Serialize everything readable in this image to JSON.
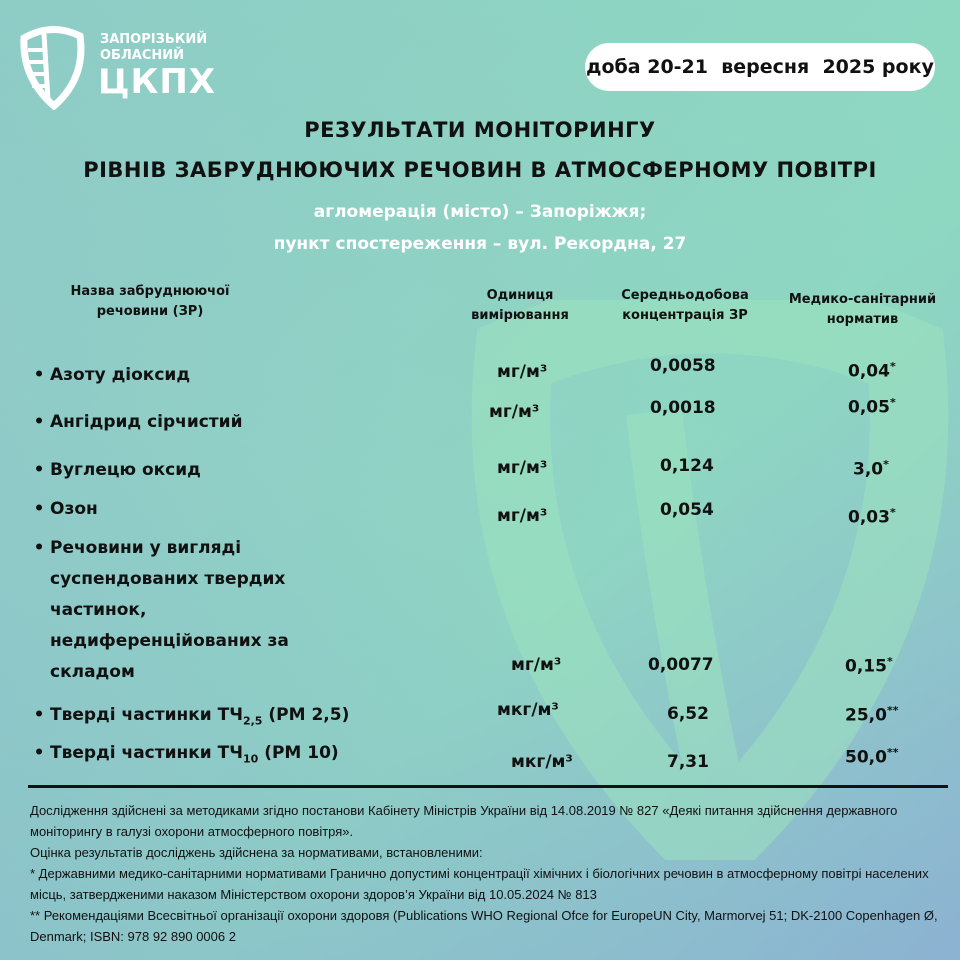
{
  "org": {
    "line1": "ЗАПОРІЗЬКИЙ",
    "line2": "ОБЛАСНИЙ",
    "abbr": "ЦКПХ"
  },
  "date": "доба 20-21  вересня  2025 року",
  "title": {
    "line1": "РЕЗУЛЬТАТИ МОНІТОРИНГУ",
    "line2": "РІВНІВ ЗАБРУДНЮЮЧИХ РЕЧОВИН В АТМОСФЕРНОМУ ПОВІТРІ"
  },
  "subtitle": {
    "line1": "агломерація (місто) – Запоріжжя;",
    "line2": "пункт спостереження – вул. Рекордна, 27"
  },
  "headers": {
    "name1": "Назва забруднюючої",
    "name2": "речовини (ЗР)",
    "unit1": "Одиниця",
    "unit2": "вимірювання",
    "conc1": "Середньодобова",
    "conc2": "концентрація ЗР",
    "norm1": "Медико-санітарний",
    "norm2": "норматив"
  },
  "bullet": "•",
  "rows": [
    {
      "name": "Азоту діоксид",
      "unit": "мг/м³",
      "conc": "0,0058",
      "norm": "0,04",
      "mark": "*"
    },
    {
      "name": "Ангідрид сірчистий",
      "unit": "мг/м³",
      "conc": "0,0018",
      "norm": "0,05",
      "mark": "*"
    },
    {
      "name": "Вуглецю оксид",
      "unit": "мг/м³",
      "conc": "0,124",
      "norm": "3,0",
      "mark": "*"
    },
    {
      "name": "Озон",
      "unit": "мг/м³",
      "conc": "0,054",
      "norm": "0,03",
      "mark": "*"
    },
    {
      "name_lines": [
        "Речовини у вигляді",
        "суспендованих твердих",
        "частинок,",
        "недиференційованих за",
        "складом"
      ],
      "unit": "мг/м³",
      "conc": "0,0077",
      "norm": "0,15",
      "mark": "*"
    },
    {
      "name_pre": "Тверді частинки ТЧ",
      "name_sub": "2,5",
      "name_post": " (РМ 2,5)",
      "unit": "мкг/м³",
      "conc": "6,52",
      "norm": "25,0",
      "mark": "**"
    },
    {
      "name_pre": "Тверді частинки ТЧ",
      "name_sub": "10",
      "name_post": " (РМ 10)",
      "unit": "мкг/м³",
      "conc": "7,31",
      "norm": "50,0",
      "mark": "**"
    }
  ],
  "footnotes": [
    " Дослідження здійснені за методиками згідно постанови Кабінету Міністрів України від 14.08.2019 № 827 «Деякі питання здійснення державного моніторингу в галузі охорони атмосферного повітря».",
    " Оцінка результатів досліджень здійснена за нормативами, встановленими:",
    "* Державними медико-санітарними нормативами Гранично допустимі концентрації хімічних і біологічних речовин в атмосферному повітрі населених місць, затвердженими наказом Міністерством охорони здоров’я України від 10.05.2024 № 813",
    "** Рекомендаціями Всесвітньої організації охорони здоровя (Publications WHO Regional Ofce for EuropeUN City, Marmorvej 51; DK-2100 Copenhagen Ø, Denmark; ISBN: 978 92 890 0006 2"
  ]
}
